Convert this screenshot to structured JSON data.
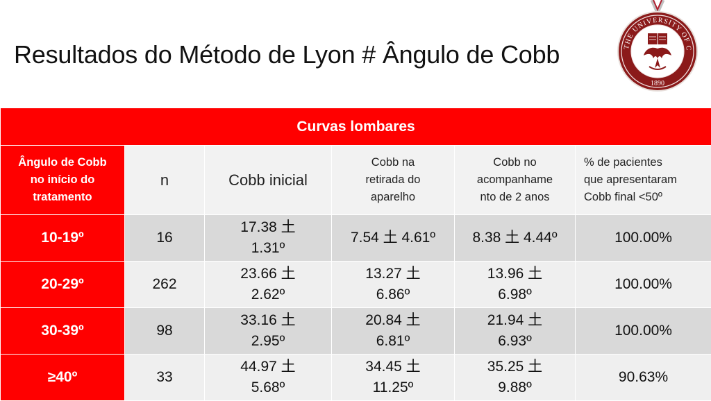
{
  "slide": {
    "title": "Resultados do Método de Lyon # Ângulo de Cobb"
  },
  "seal": {
    "text_top": "THE UNIVERSITY OF CHICAGO",
    "year": "1890"
  },
  "table": {
    "banner": "Curvas lombares",
    "headers": {
      "col1": [
        "Ângulo de Cobb",
        "no início do",
        "tratamento"
      ],
      "col2": "n",
      "col3": "Cobb inicial",
      "col4": [
        "Cobb na",
        "retirada do",
        "aparelho"
      ],
      "col5": [
        "Cobb no",
        "acompanhame",
        "nto de 2 anos"
      ],
      "col6": [
        "% de pacientes",
        "que apresentaram",
        "Cobb final <50º"
      ]
    },
    "rows": [
      {
        "range": "10-19º",
        "n": "16",
        "initial": [
          "17.38 土",
          "1.31º"
        ],
        "removal": [
          "7.54 土 4.61º"
        ],
        "followup": [
          "8.38 土 4.44º"
        ],
        "percent": "100.00%"
      },
      {
        "range": "20-29º",
        "n": "262",
        "initial": [
          "23.66 土",
          "2.62º"
        ],
        "removal": [
          "13.27 土",
          "6.86º"
        ],
        "followup": [
          "13.96 土",
          "6.98º"
        ],
        "percent": "100.00%"
      },
      {
        "range": "30-39º",
        "n": "98",
        "initial": [
          "33.16 土",
          "2.95º"
        ],
        "removal": [
          "20.84 土",
          "6.81º"
        ],
        "followup": [
          "21.94 土",
          "6.93º"
        ],
        "percent": "100.00%"
      },
      {
        "range": "≥40º",
        "n": "33",
        "initial": [
          "44.97 土",
          "5.68º"
        ],
        "removal": [
          "34.45 土",
          "11.25º"
        ],
        "followup": [
          "35.25 土",
          "9.88º"
        ],
        "percent": "90.63%"
      }
    ]
  },
  "colors": {
    "accent_red": "#ff0000",
    "row_dark": "#d9d9d9",
    "row_light": "#efefef",
    "seal_red": "#8b1a1a"
  }
}
